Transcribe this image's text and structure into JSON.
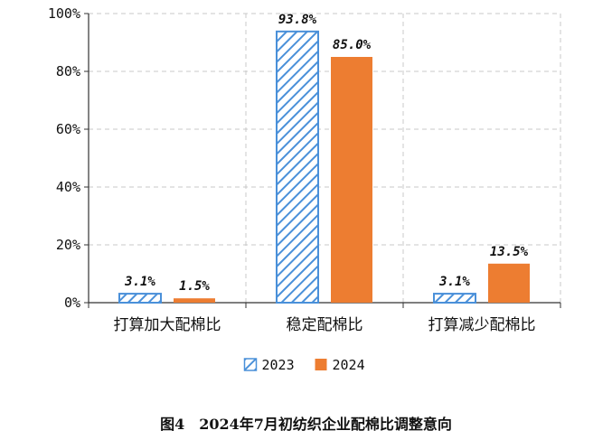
{
  "caption": "图4　2024年7月初纺织企业配棉比调整意向",
  "chart_data": {
    "type": "bar",
    "categories": [
      "打算加大配棉比",
      "稳定配棉比",
      "打算减少配棉比"
    ],
    "series": [
      {
        "name": "2023",
        "values": [
          3.1,
          93.8,
          3.1
        ],
        "labels": [
          "3.1%",
          "93.8%",
          "3.1%"
        ],
        "color": "#4a90d9",
        "pattern": "diagonal-hatch"
      },
      {
        "name": "2024",
        "values": [
          1.5,
          85.0,
          13.5
        ],
        "labels": [
          "1.5%",
          "85.0%",
          "13.5%"
        ],
        "color": "#ed7d31",
        "pattern": "solid"
      }
    ],
    "ylim": [
      0,
      100
    ],
    "yticks": [
      0,
      20,
      40,
      60,
      80,
      100
    ],
    "ytick_labels": [
      "0%",
      "20%",
      "40%",
      "60%",
      "80%",
      "100%"
    ],
    "grid": true,
    "legend_position": "bottom"
  }
}
